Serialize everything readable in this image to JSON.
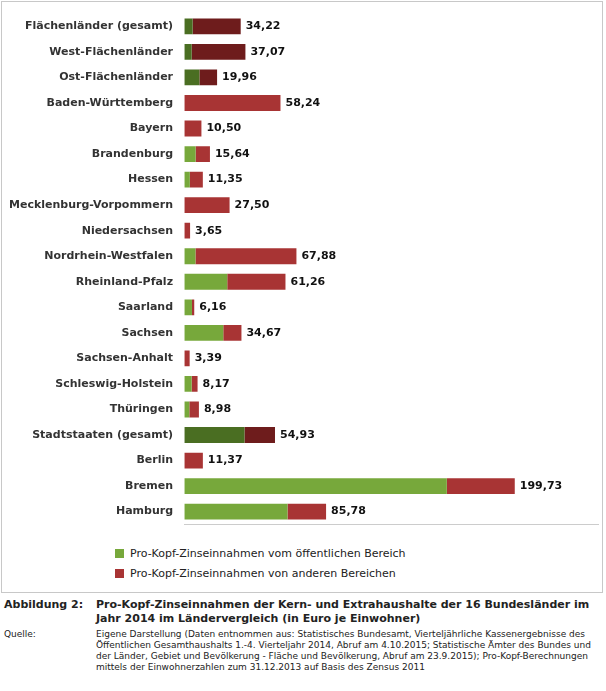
{
  "chart_data": {
    "type": "bar",
    "orientation": "horizontal",
    "stacked": true,
    "grid": false,
    "tick_labels": "y",
    "figure_label": "Abbildung 2:",
    "title": "Pro-Kopf-Zinseinnahmen der Kern- und Extrahaushalte der 16 Bundesländer im Jahr 2014 im Ländervergleich (in Euro je Einwohner)",
    "source_label": "Quelle:",
    "source": "Eigene Darstellung (Daten entnommen aus: Statistisches Bundesamt, Vierteljährliche Kassenergebnisse des Öffentlichen Gesamthaushalts 1.-4. Vierteljahr 2014, Abruf am 4.10.2015; Statistische Ämter des Bundes und der Länder, Gebiet und Bevölkerung - Fläche und Bevölkerung, Abruf am 23.9.2015); Pro-Kopf-Berechnungen mittels der Einwohnerzahlen zum 31.12.2013 auf Basis des Zensus 2011",
    "categories": [
      "Flächenländer (gesamt)",
      "West-Flächenländer",
      "Ost-Flächenländer",
      "Baden-Württemberg",
      "Bayern",
      "Brandenburg",
      "Hessen",
      "Mecklenburg-Vorpommern",
      "Niedersachsen",
      "Nordrhein-Westfalen",
      "Rheinland-Pfalz",
      "Saarland",
      "Sachsen",
      "Sachsen-Anhalt",
      "Schleswig-Holstein",
      "Thüringen",
      "Stadtstaaten (gesamt)",
      "Berlin",
      "Bremen",
      "Hamburg"
    ],
    "series": [
      {
        "name": "Pro-Kopf-Zinseinnahmen vom öffentlichen Bereich",
        "color": "#77a83b",
        "colors": [
          "#4a6e22",
          "#4a6e22",
          "#4a6e22",
          "#77a83b",
          "#77a83b",
          "#77a83b",
          "#77a83b",
          "#77a83b",
          "#77a83b",
          "#77a83b",
          "#77a83b",
          "#77a83b",
          "#77a83b",
          "#77a83b",
          "#77a83b",
          "#77a83b",
          "#4a6e22",
          "#77a83b",
          "#77a83b",
          "#77a83b"
        ],
        "values": [
          5.2,
          4.6,
          9.3,
          0,
          0,
          7.0,
          3.5,
          0,
          0,
          6.9,
          26.1,
          4.8,
          23.7,
          0,
          4.6,
          3.2,
          36.5,
          0,
          158.7,
          62.5
        ]
      },
      {
        "name": "Pro-Kopf-Zinseinnahmen von anderen Bereichen",
        "color": "#a83434",
        "colors": [
          "#6e1c1c",
          "#6e1c1c",
          "#6e1c1c",
          "#a83434",
          "#a83434",
          "#a83434",
          "#a83434",
          "#a83434",
          "#a83434",
          "#a83434",
          "#a83434",
          "#a83434",
          "#a83434",
          "#a83434",
          "#a83434",
          "#a83434",
          "#6e1c1c",
          "#a83434",
          "#a83434",
          "#a83434"
        ],
        "values": [
          29.02,
          32.47,
          10.66,
          58.24,
          10.5,
          8.64,
          7.85,
          27.5,
          3.65,
          60.98,
          35.16,
          1.36,
          10.97,
          3.39,
          3.57,
          5.78,
          18.43,
          11.37,
          41.03,
          23.28
        ]
      }
    ],
    "totals": [
      34.22,
      37.07,
      19.96,
      58.24,
      10.5,
      15.64,
      11.35,
      27.5,
      3.65,
      67.88,
      61.26,
      6.16,
      34.67,
      3.39,
      8.17,
      8.98,
      54.93,
      11.37,
      199.73,
      85.78
    ],
    "total_labels": [
      "34,22",
      "37,07",
      "19,96",
      "58,24",
      "10,50",
      "15,64",
      "11,35",
      "27,50",
      "3,65",
      "67,88",
      "61,26",
      "6,16",
      "34,67",
      "3,39",
      "8,17",
      "8,98",
      "54,93",
      "11,37",
      "199,73",
      "85,78"
    ],
    "xlim": [
      0,
      250
    ]
  }
}
